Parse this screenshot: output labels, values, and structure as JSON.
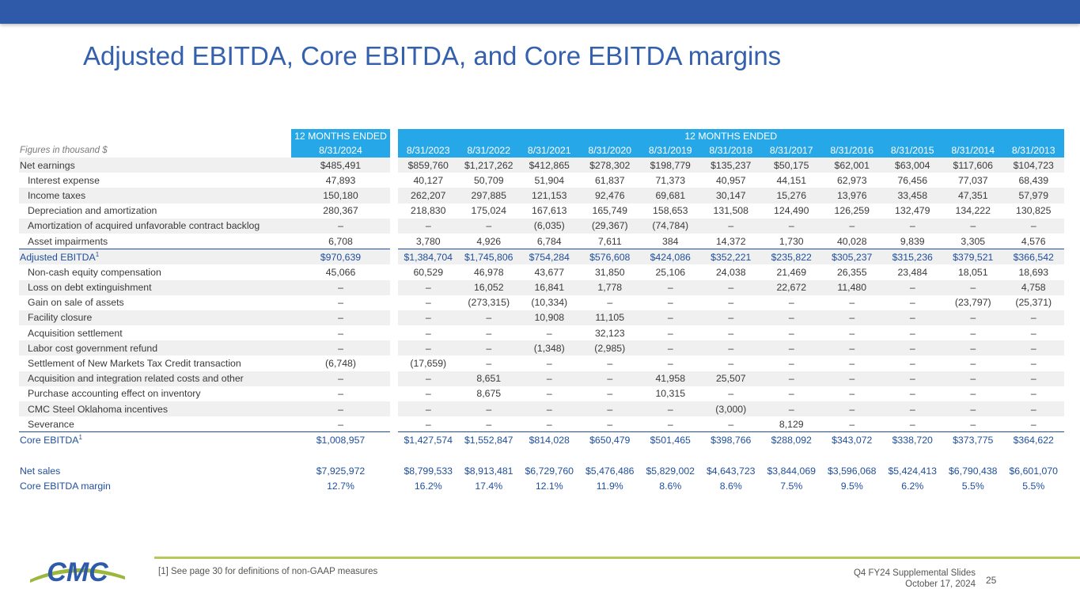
{
  "title": "Adjusted EBITDA, Core EBITDA, and Core EBITDA margins",
  "table": {
    "group_label_current": "12 MONTHS ENDED",
    "group_label_history": "12 MONTHS ENDED",
    "units_label": "Figures in thousand $",
    "columns": [
      "8/31/2024",
      "8/31/2023",
      "8/31/2022",
      "8/31/2021",
      "8/31/2020",
      "8/31/2019",
      "8/31/2018",
      "8/31/2017",
      "8/31/2016",
      "8/31/2015",
      "8/31/2014",
      "8/31/2013"
    ],
    "rows": [
      {
        "label": "Net earnings",
        "values": [
          "$485,491",
          "$859,760",
          "$1,217,262",
          "$412,865",
          "$278,302",
          "$198,779",
          "$135,237",
          "$50,175",
          "$62,001",
          "$63,004",
          "$117,606",
          "$104,723"
        ]
      },
      {
        "label": "Interest expense",
        "values": [
          "47,893",
          "40,127",
          "50,709",
          "51,904",
          "61,837",
          "71,373",
          "40,957",
          "44,151",
          "62,973",
          "76,456",
          "77,037",
          "68,439"
        ]
      },
      {
        "label": "Income taxes",
        "values": [
          "150,180",
          "262,207",
          "297,885",
          "121,153",
          "92,476",
          "69,681",
          "30,147",
          "15,276",
          "13,976",
          "33,458",
          "47,351",
          "57,979"
        ]
      },
      {
        "label": "Depreciation and amortization",
        "values": [
          "280,367",
          "218,830",
          "175,024",
          "167,613",
          "165,749",
          "158,653",
          "131,508",
          "124,490",
          "126,259",
          "132,479",
          "134,222",
          "130,825"
        ]
      },
      {
        "label": "Amortization of acquired unfavorable contract backlog",
        "values": [
          "–",
          "–",
          "–",
          "(6,035)",
          "(29,367)",
          "(74,784)",
          "–",
          "–",
          "–",
          "–",
          "–",
          "–"
        ]
      },
      {
        "label": "Asset impairments",
        "values": [
          "6,708",
          "3,780",
          "4,926",
          "6,784",
          "7,611",
          "384",
          "14,372",
          "1,730",
          "40,028",
          "9,839",
          "3,305",
          "4,576"
        ]
      },
      {
        "label": "Adjusted EBITDA",
        "sup": "1",
        "values": [
          "$970,639",
          "$1,384,704",
          "$1,745,806",
          "$754,284",
          "$576,608",
          "$424,086",
          "$352,221",
          "$235,822",
          "$305,237",
          "$315,236",
          "$379,521",
          "$366,542"
        ]
      },
      {
        "label": "Non-cash equity compensation",
        "values": [
          "45,066",
          "60,529",
          "46,978",
          "43,677",
          "31,850",
          "25,106",
          "24,038",
          "21,469",
          "26,355",
          "23,484",
          "18,051",
          "18,693"
        ]
      },
      {
        "label": "Loss on debt extinguishment",
        "values": [
          "–",
          "–",
          "16,052",
          "16,841",
          "1,778",
          "–",
          "–",
          "22,672",
          "11,480",
          "–",
          "–",
          "4,758"
        ]
      },
      {
        "label": "Gain on sale of assets",
        "values": [
          "–",
          "–",
          "(273,315)",
          "(10,334)",
          "–",
          "–",
          "–",
          "–",
          "–",
          "–",
          "(23,797)",
          "(25,371)"
        ]
      },
      {
        "label": "Facility closure",
        "values": [
          "–",
          "–",
          "–",
          "10,908",
          "11,105",
          "–",
          "–",
          "–",
          "–",
          "–",
          "–",
          "–"
        ]
      },
      {
        "label": "Acquisition settlement",
        "values": [
          "–",
          "–",
          "–",
          "–",
          "32,123",
          "–",
          "–",
          "–",
          "–",
          "–",
          "–",
          "–"
        ]
      },
      {
        "label": "Labor cost government refund",
        "values": [
          "–",
          "–",
          "–",
          "(1,348)",
          "(2,985)",
          "–",
          "–",
          "–",
          "–",
          "–",
          "–",
          "–"
        ]
      },
      {
        "label": "Settlement of New Markets Tax Credit transaction",
        "values": [
          "(6,748)",
          "(17,659)",
          "–",
          "–",
          "–",
          "–",
          "–",
          "–",
          "–",
          "–",
          "–",
          "–"
        ]
      },
      {
        "label": "Acquisition and integration related costs and other",
        "values": [
          "–",
          "–",
          "8,651",
          "–",
          "–",
          "41,958",
          "25,507",
          "–",
          "–",
          "–",
          "–",
          "–"
        ]
      },
      {
        "label": "Purchase accounting effect on inventory",
        "values": [
          "–",
          "–",
          "8,675",
          "–",
          "–",
          "10,315",
          "–",
          "–",
          "–",
          "–",
          "–",
          "–"
        ]
      },
      {
        "label": "CMC Steel Oklahoma incentives",
        "values": [
          "–",
          "–",
          "–",
          "–",
          "–",
          "–",
          "(3,000)",
          "–",
          "–",
          "–",
          "–",
          "–"
        ]
      },
      {
        "label": "Severance",
        "values": [
          "–",
          "–",
          "–",
          "–",
          "–",
          "–",
          "–",
          "8,129",
          "–",
          "–",
          "–",
          "–"
        ]
      },
      {
        "label": "Core EBITDA",
        "sup": "1",
        "values": [
          "$1,008,957",
          "$1,427,574",
          "$1,552,847",
          "$814,028",
          "$650,479",
          "$501,465",
          "$398,766",
          "$288,092",
          "$343,072",
          "$338,720",
          "$373,775",
          "$364,622"
        ]
      },
      {
        "label": "Net sales",
        "values": [
          "$7,925,972",
          "$8,799,533",
          "$8,913,481",
          "$6,729,760",
          "$5,476,486",
          "$5,829,002",
          "$4,643,723",
          "$3,844,069",
          "$3,596,068",
          "$5,424,413",
          "$6,790,438",
          "$6,601,070"
        ]
      },
      {
        "label": "Core EBITDA margin",
        "values": [
          "12.7%",
          "16.2%",
          "17.4%",
          "12.1%",
          "11.9%",
          "8.6%",
          "8.6%",
          "7.5%",
          "9.5%",
          "6.2%",
          "5.5%",
          "5.5%"
        ]
      }
    ]
  },
  "logo": {
    "text": "CMC"
  },
  "footer": {
    "note": "[1] See page 30 for definitions of non-GAAP measures",
    "deck": "Q4 FY24 Supplemental Slides",
    "date": "October 17, 2024",
    "page": "25"
  },
  "colors": {
    "header_blue": "#26a7e8",
    "title_blue": "#3460ad",
    "total_blue": "#1f4f9c",
    "footer_green": "#b7c95a"
  }
}
